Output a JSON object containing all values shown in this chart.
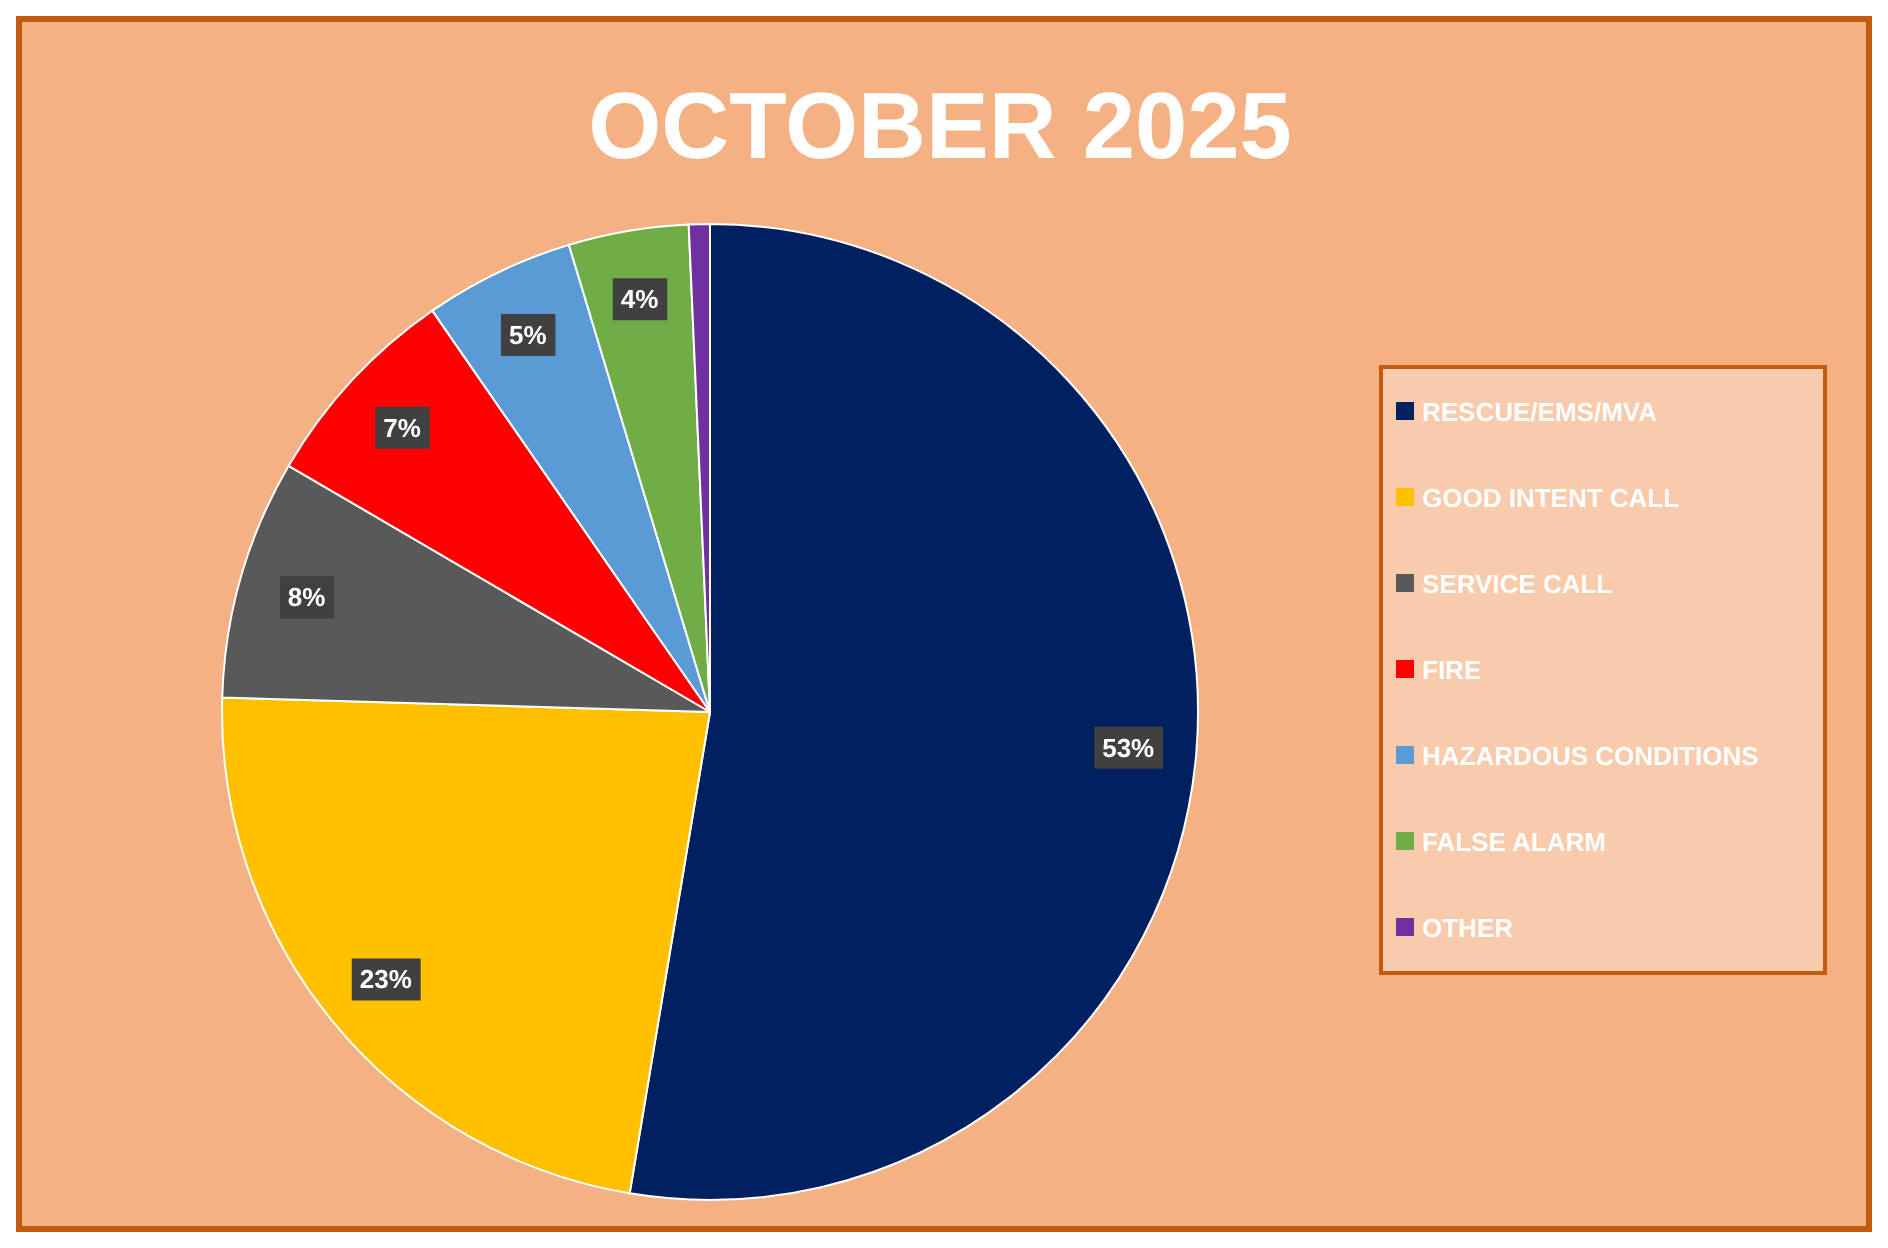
{
  "chart_data": {
    "type": "pie",
    "title": "OCTOBER 2025",
    "categories": [
      "RESCUE/EMS/MVA",
      "GOOD INTENT CALL",
      "SERVICE CALL",
      "FIRE",
      "HAZARDOUS CONDITIONS",
      "FALSE ALARM",
      "OTHER"
    ],
    "values": [
      53,
      23,
      8,
      7,
      5,
      4,
      0.7
    ],
    "colors": [
      "#002060",
      "#ffc000",
      "#595959",
      "#ff0000",
      "#5b9bd5",
      "#70ad47",
      "#7030a0"
    ],
    "value_labels": [
      "53%",
      "23%",
      "8%",
      "7%",
      "5%",
      "4%",
      null
    ],
    "legend": "right"
  }
}
